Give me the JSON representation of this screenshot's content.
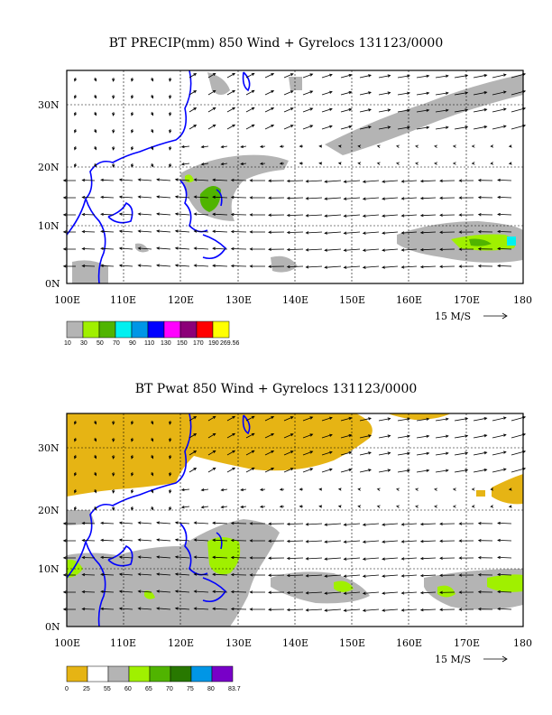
{
  "panels": [
    {
      "title": "BT PRECIP(mm) 850 Wind + Gyrelocs 131123/0000",
      "lat_labels": [
        "30N",
        "20N",
        "10N",
        "0N"
      ],
      "lon_labels": [
        "100E",
        "110E",
        "120E",
        "130E",
        "140E",
        "150E",
        "160E",
        "170E",
        "180"
      ],
      "reference_vector": "15 M/S",
      "colorbar": {
        "colors": [
          "#b4b4b4",
          "#a0f000",
          "#50b400",
          "#00f0f0",
          "#0096e6",
          "#0000ff",
          "#ff00ff",
          "#8c0078",
          "#ff0000",
          "#ffff00"
        ],
        "labels": [
          "10",
          "30",
          "50",
          "70",
          "90",
          "110",
          "130",
          "150",
          "170",
          "190",
          "269.56"
        ]
      }
    },
    {
      "title": "BT Pwat 850 Wind + Gyrelocs 131123/0000",
      "lat_labels": [
        "30N",
        "20N",
        "10N",
        "0N"
      ],
      "lon_labels": [
        "100E",
        "110E",
        "120E",
        "130E",
        "140E",
        "150E",
        "160E",
        "170E",
        "180"
      ],
      "reference_vector": "15 M/S",
      "colorbar": {
        "colors": [
          "#e6b414",
          "#ffffff",
          "#b4b4b4",
          "#a0f000",
          "#50b400",
          "#287800",
          "#0096e6",
          "#7800c8"
        ],
        "labels": [
          "0",
          "25",
          "55",
          "60",
          "65",
          "70",
          "75",
          "80",
          "83.7"
        ]
      }
    }
  ]
}
